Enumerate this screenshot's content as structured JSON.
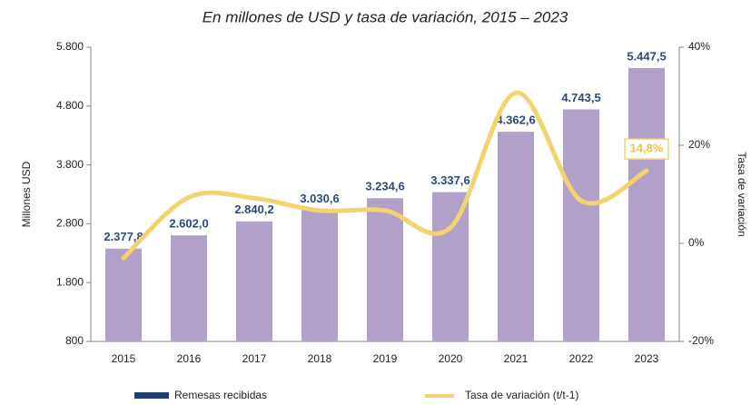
{
  "chart_data": {
    "type": "bar",
    "title": "En millones de USD y tasa de variación, 2015 – 2023",
    "ylabel": "Millones USD",
    "y2label": "Tasa de variación",
    "categories": [
      "2015",
      "2016",
      "2017",
      "2018",
      "2019",
      "2020",
      "2021",
      "2022",
      "2023"
    ],
    "series": [
      {
        "name": "Remesas recibidas",
        "type": "bar",
        "color": "#b1a0c7",
        "legend_color": "#1f3e6b",
        "values": [
          2377.8,
          2602.0,
          2840.2,
          3030.6,
          3234.6,
          3337.6,
          4362.6,
          4743.5,
          5447.5
        ],
        "value_labels": [
          "2.377,8",
          "2.602,0",
          "2.840,2",
          "3.030,6",
          "3.234,6",
          "3.337,6",
          "4.362,6",
          "4.743,5",
          "5.447,5"
        ]
      },
      {
        "name": "Tasa de variación (t/t-1)",
        "type": "line",
        "axis": "y2",
        "color": "#f2d36f",
        "values": [
          -3.0,
          9.4,
          9.2,
          6.7,
          6.7,
          3.2,
          30.7,
          8.7,
          14.8
        ],
        "value_labels": [
          null,
          null,
          null,
          null,
          null,
          null,
          null,
          null,
          "14,8%"
        ]
      }
    ],
    "ylim": [
      800,
      5800
    ],
    "yticks": [
      {
        "value": 800,
        "label": "800"
      },
      {
        "value": 1800,
        "label": "1.800"
      },
      {
        "value": 2800,
        "label": "2.800"
      },
      {
        "value": 3800,
        "label": "3.800"
      },
      {
        "value": 4800,
        "label": "4.800"
      },
      {
        "value": 5800,
        "label": "5.800"
      }
    ],
    "y2lim": [
      -20,
      40
    ],
    "y2ticks": [
      {
        "value": -20,
        "label": "-20%"
      },
      {
        "value": 0,
        "label": "0%"
      },
      {
        "value": 20,
        "label": "20%"
      },
      {
        "value": 40,
        "label": "40%"
      }
    ],
    "legend": "bottom"
  }
}
